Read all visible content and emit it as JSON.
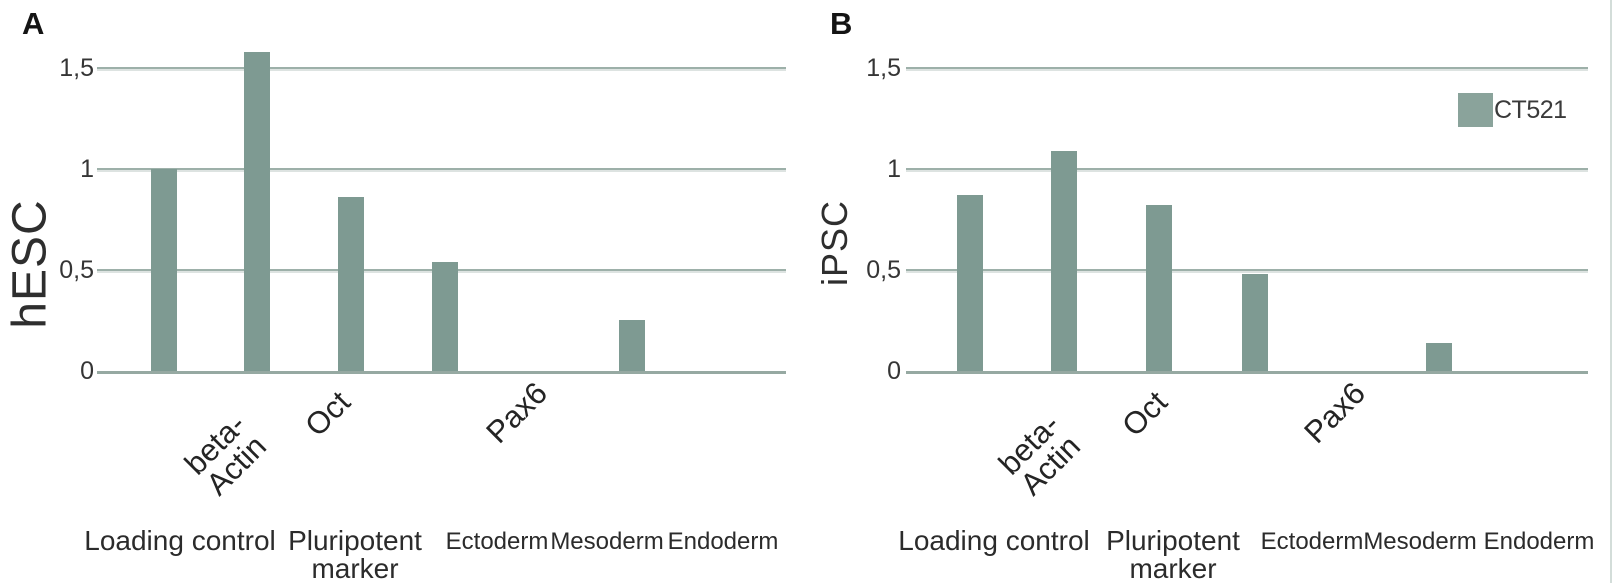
{
  "figure": {
    "description": "Two-panel bar chart of relative gene expression (CT521 cell line) in hESC and iPSC",
    "panel_a_letter": "A",
    "panel_b_letter": "B",
    "legend": {
      "label": "CT521",
      "swatch_color": "#8aa39b",
      "position": "top-right of panel B"
    },
    "colors": {
      "bar": "#7e9a92",
      "gridline": "#9db0a9",
      "baseline": "#96a9a2",
      "text": "#2e2e2e",
      "right_border": "#d3ddd9"
    }
  },
  "chart_data": [
    {
      "type": "bar",
      "panel": "A",
      "ylabel": "hESC",
      "ylim": [
        0,
        1.65
      ],
      "grid": true,
      "yticks": [
        {
          "label": "1,5",
          "value": 1.5
        },
        {
          "label": "1",
          "value": 1.0
        },
        {
          "label": "0,5",
          "value": 0.5
        },
        {
          "label": "0",
          "value": 0
        }
      ],
      "series": [
        {
          "name": "CT521",
          "values": [
            1.0,
            1.58,
            0.86,
            0.54,
            0,
            0.25,
            0
          ]
        }
      ],
      "gene_labels": [
        [
          "beta-",
          "Actin"
        ],
        [
          "Oct"
        ],
        [
          "Pax6"
        ]
      ],
      "group_labels": [
        [
          "Loading control"
        ],
        [
          "Pluripotent",
          "marker"
        ],
        [
          "Ectoderm"
        ],
        [
          "Mesoderm"
        ],
        [
          "Endoderm"
        ]
      ],
      "legend_entry": null
    },
    {
      "type": "bar",
      "panel": "B",
      "ylabel": "iPSC",
      "ylim": [
        0,
        1.65
      ],
      "grid": true,
      "yticks": [
        {
          "label": "1,5",
          "value": 1.5
        },
        {
          "label": "1",
          "value": 1.0
        },
        {
          "label": "0,5",
          "value": 0.5
        },
        {
          "label": "0",
          "value": 0
        }
      ],
      "series": [
        {
          "name": "CT521",
          "values": [
            0.87,
            1.09,
            0.82,
            0.48,
            0,
            0.14,
            0
          ]
        }
      ],
      "gene_labels": [
        [
          "beta-",
          "Actin"
        ],
        [
          "Oct"
        ],
        [
          "Pax6"
        ]
      ],
      "group_labels": [
        [
          "Loading control"
        ],
        [
          "Pluripotent",
          "marker"
        ],
        [
          "Ectoderm"
        ],
        [
          "Mesoderm"
        ],
        [
          "Endoderm"
        ]
      ],
      "legend_entry": "CT521"
    }
  ]
}
